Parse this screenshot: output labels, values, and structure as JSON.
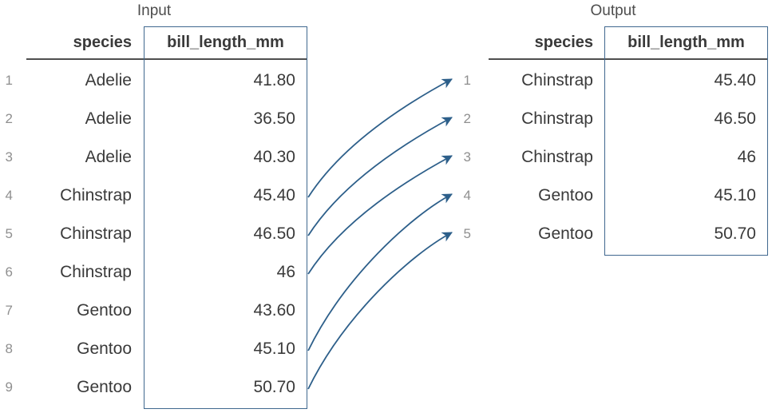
{
  "input": {
    "title": "Input",
    "columns": {
      "species": "species",
      "bill": "bill_length_mm"
    },
    "rows": [
      {
        "n": "1",
        "species": "Adelie",
        "bill": "41.80"
      },
      {
        "n": "2",
        "species": "Adelie",
        "bill": "36.50"
      },
      {
        "n": "3",
        "species": "Adelie",
        "bill": "40.30"
      },
      {
        "n": "4",
        "species": "Chinstrap",
        "bill": "45.40"
      },
      {
        "n": "5",
        "species": "Chinstrap",
        "bill": "46.50"
      },
      {
        "n": "6",
        "species": "Chinstrap",
        "bill": "46"
      },
      {
        "n": "7",
        "species": "Gentoo",
        "bill": "43.60"
      },
      {
        "n": "8",
        "species": "Gentoo",
        "bill": "45.10"
      },
      {
        "n": "9",
        "species": "Gentoo",
        "bill": "50.70"
      }
    ]
  },
  "output": {
    "title": "Output",
    "columns": {
      "species": "species",
      "bill": "bill_length_mm"
    },
    "rows": [
      {
        "n": "1",
        "species": "Chinstrap",
        "bill": "45.40"
      },
      {
        "n": "2",
        "species": "Chinstrap",
        "bill": "46.50"
      },
      {
        "n": "3",
        "species": "Chinstrap",
        "bill": "46"
      },
      {
        "n": "4",
        "species": "Gentoo",
        "bill": "45.10"
      },
      {
        "n": "5",
        "species": "Gentoo",
        "bill": "50.70"
      }
    ]
  },
  "arrows": {
    "links": [
      {
        "from": 4,
        "to": 1
      },
      {
        "from": 5,
        "to": 2
      },
      {
        "from": 6,
        "to": 3
      },
      {
        "from": 8,
        "to": 4
      },
      {
        "from": 9,
        "to": 5
      }
    ]
  },
  "colors": {
    "arrow": "#2d5f8a",
    "highlight_box_border": "#40688f",
    "header_rule": "#4f4f4f",
    "text": "#3a3a3a",
    "row_number": "#8f8f8f",
    "title": "#4d4d4d",
    "background": "#ffffff"
  }
}
